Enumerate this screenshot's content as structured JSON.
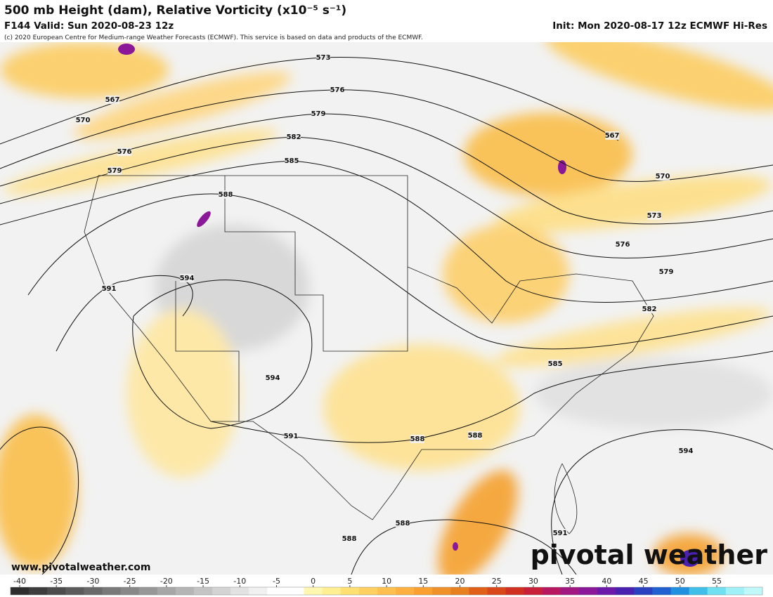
{
  "header": {
    "title": "500 mb Height (dam), Relative Vorticity (x10⁻⁵ s⁻¹)",
    "valid": "F144 Valid: Sun 2020-08-23 12z",
    "init": "Init: Mon 2020-08-17 12z ECMWF Hi-Res",
    "copyright": "(c) 2020 European Centre for Medium-range Weather Forecasts (ECMWF). This service is based on data and products of the ECMWF."
  },
  "map": {
    "contour_labels": [
      "573",
      "576",
      "579",
      "582",
      "585",
      "588",
      "591",
      "594",
      "594",
      "591",
      "588",
      "588",
      "588",
      "588",
      "591",
      "594",
      "585",
      "582",
      "579",
      "576",
      "573",
      "570",
      "567",
      "567",
      "570",
      "576",
      "579"
    ]
  },
  "footer": {
    "website": "www.pivotalweather.com",
    "logo": "pivotal weather"
  },
  "colorbar": {
    "ticks": [
      -40,
      -35,
      -30,
      -25,
      -20,
      -15,
      -10,
      -5,
      0,
      5,
      10,
      15,
      20,
      25,
      30,
      35,
      40,
      45,
      50,
      55
    ],
    "colors": [
      "#2e2e2e",
      "#3d3d3d",
      "#4c4c4c",
      "#5b5b5b",
      "#6a6a6a",
      "#797979",
      "#888888",
      "#979797",
      "#a6a6a6",
      "#b5b5b5",
      "#c4c4c4",
      "#d3d3d3",
      "#e2e2e2",
      "#f0f0f0",
      "#ffffff",
      "#ffffff",
      "#fff7b0",
      "#ffef90",
      "#ffe070",
      "#ffd060",
      "#ffc050",
      "#ffb040",
      "#f9a030",
      "#f09028",
      "#e88020",
      "#e06018",
      "#d84818",
      "#d03020",
      "#c82038",
      "#b81860",
      "#a01880",
      "#8a1898",
      "#6c18a8",
      "#4a20b0",
      "#2a40c0",
      "#2060d0",
      "#2090e0",
      "#40c0e8",
      "#70e0f0",
      "#a0f0f8",
      "#c0f8fa"
    ]
  }
}
